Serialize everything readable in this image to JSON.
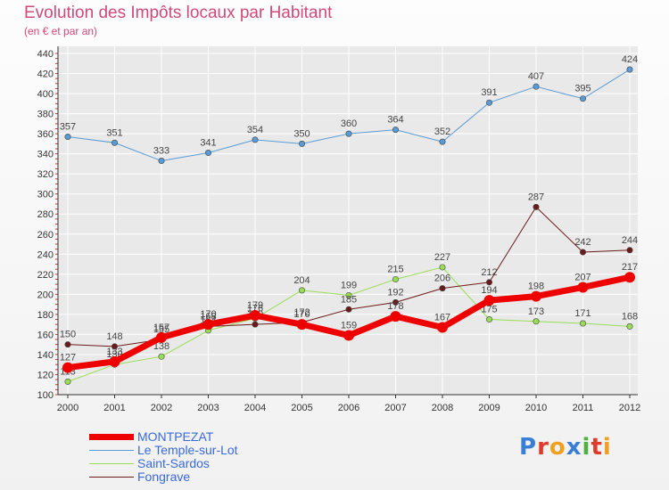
{
  "title": "Evolution des Impôts locaux par Habitant",
  "subtitle": "(en € et par an)",
  "logo": {
    "text": "Proxiti",
    "colors": [
      "#3a7fd5",
      "#e03a2a",
      "#f0a020",
      "#3a7fd5",
      "#50b040",
      "#e03a2a",
      "#f0a020"
    ]
  },
  "colors": {
    "title": "#d0497a",
    "axis": "#333333",
    "grid": "#ffffff",
    "tick_label": "#333333",
    "value_label": "#444444",
    "legend_text": "#3a6ad8"
  },
  "chart_data": {
    "type": "line",
    "title": "Evolution des Impôts locaux par Habitant",
    "subtitle": "(en € et par an)",
    "xlabel": "",
    "ylabel": "",
    "x": [
      "2000",
      "2001",
      "2002",
      "2003",
      "2004",
      "2005",
      "2006",
      "2007",
      "2008",
      "2009",
      "2010",
      "2011",
      "2012"
    ],
    "ylim": [
      100,
      440
    ],
    "yticks": [
      100,
      120,
      140,
      160,
      180,
      200,
      220,
      240,
      260,
      280,
      300,
      320,
      340,
      360,
      380,
      400,
      420,
      440
    ],
    "grid": true,
    "legend_position": "bottom-left",
    "series": [
      {
        "name": "Le Temple-sur-Lot",
        "color": "#5b9bd5",
        "width": 1,
        "values": [
          357,
          351,
          333,
          341,
          354,
          350,
          360,
          364,
          352,
          391,
          407,
          395,
          424
        ]
      },
      {
        "name": "Saint-Sardos",
        "color": "#99dd55",
        "width": 1,
        "values": [
          113,
          130,
          138,
          164,
          176,
          204,
          199,
          215,
          227,
          175,
          173,
          171,
          168
        ]
      },
      {
        "name": "Fongrave",
        "color": "#6b1a1a",
        "width": 1,
        "values": [
          150,
          148,
          155,
          168,
          170,
          172,
          185,
          192,
          206,
          212,
          287,
          242,
          244
        ]
      },
      {
        "name": "MONTPEZAT",
        "color": "#ee0000",
        "width": 7,
        "values": [
          127,
          133,
          157,
          170,
          179,
          170,
          159,
          178,
          167,
          194,
          198,
          207,
          217
        ]
      }
    ]
  },
  "legend": [
    {
      "name": "MONTPEZAT",
      "color": "#ee0000",
      "width": 7
    },
    {
      "name": "Le Temple-sur-Lot",
      "color": "#5b9bd5",
      "width": 1
    },
    {
      "name": "Saint-Sardos",
      "color": "#99dd55",
      "width": 1
    },
    {
      "name": "Fongrave",
      "color": "#6b1a1a",
      "width": 1
    }
  ]
}
